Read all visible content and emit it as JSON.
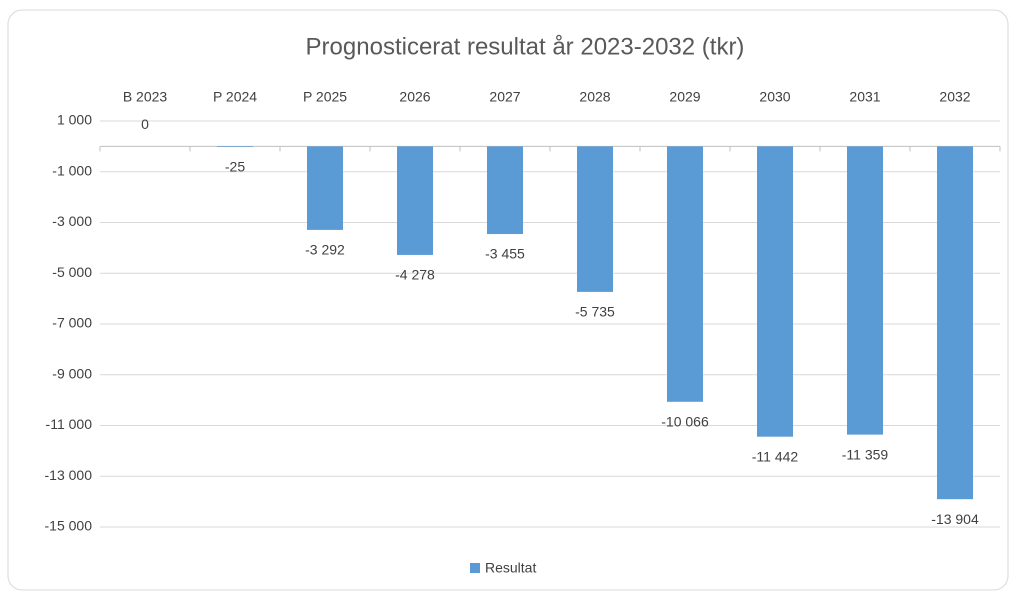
{
  "chart_data": {
    "type": "bar",
    "title": "Prognosticerat resultat år 2023-2032 (tkr)",
    "categories": [
      "B 2023",
      "P 2024",
      "P 2025",
      "2026",
      "2027",
      "2028",
      "2029",
      "2030",
      "2031",
      "2032"
    ],
    "series": [
      {
        "name": "Resultat",
        "color": "#5b9bd5",
        "values": [
          0,
          -25,
          -3292,
          -4278,
          -3455,
          -5735,
          -10066,
          -11442,
          -11359,
          -13904
        ],
        "value_labels": [
          "0",
          "-25",
          "-3 292",
          "-4 278",
          "-3 455",
          "-5 735",
          "-10 066",
          "-11 442",
          "-11 359",
          "-13 904"
        ]
      }
    ],
    "ylim": [
      -15000,
      1000
    ],
    "yticks": [
      {
        "value": 1000,
        "label": "1 000"
      },
      {
        "value": -1000,
        "label": "-1 000"
      },
      {
        "value": -3000,
        "label": "-3 000"
      },
      {
        "value": -5000,
        "label": "-5 000"
      },
      {
        "value": -7000,
        "label": "-7 000"
      },
      {
        "value": -9000,
        "label": "-9 000"
      },
      {
        "value": -11000,
        "label": "-11 000"
      },
      {
        "value": -13000,
        "label": "-13 000"
      },
      {
        "value": -15000,
        "label": "-15 000"
      }
    ],
    "grid": true,
    "legend": "bottom"
  }
}
